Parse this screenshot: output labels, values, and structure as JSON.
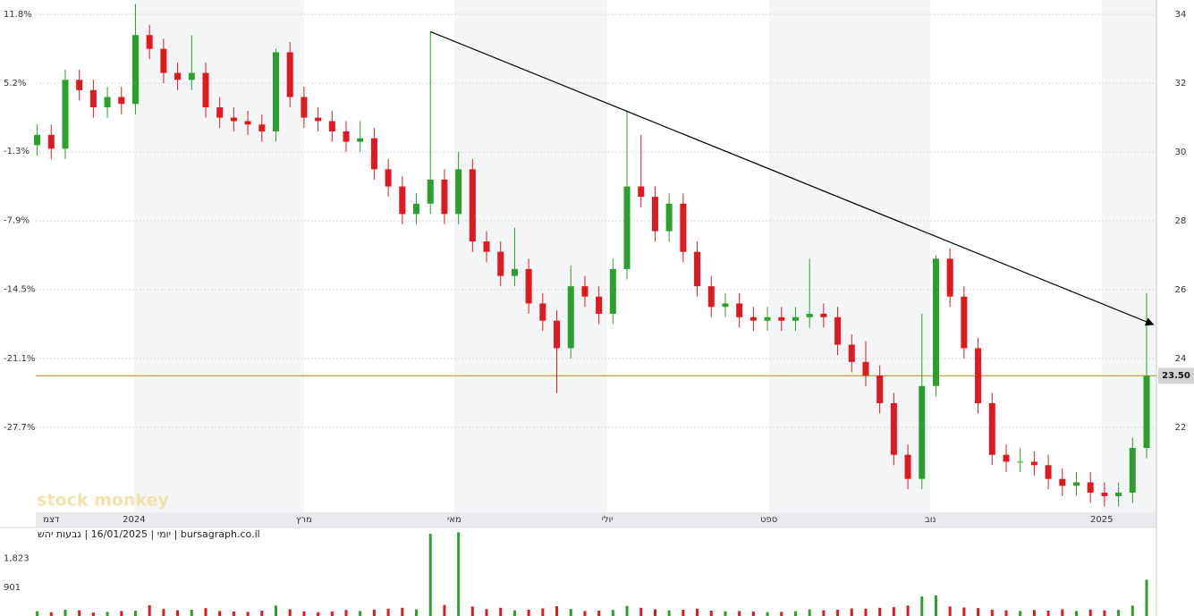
{
  "chart_data": {
    "type": "candlestick",
    "subtitle": "יומי | 16/01/2025 | גבעות יהש | bursagraph.co.il",
    "watermark": "stock monkey",
    "xlim": [
      -0.1,
      79.7
    ],
    "xticks": [
      {
        "value": 1.0,
        "label": "דצמ"
      },
      {
        "value": 6.9,
        "label": "2024"
      },
      {
        "value": 19.0,
        "label": "מרץ"
      },
      {
        "value": 29.7,
        "label": "מאי"
      },
      {
        "value": 40.6,
        "label": "יולי"
      },
      {
        "value": 52.1,
        "label": "ספט"
      },
      {
        "value": 63.6,
        "label": "נוב"
      },
      {
        "value": 75.8,
        "label": "2025"
      }
    ],
    "ylim": [
      19.53,
      34.42
    ],
    "yticks": [
      22,
      24,
      26,
      28,
      30,
      32,
      34
    ],
    "y2lim": [
      -35.82,
      13.17
    ],
    "y2ticks": [
      {
        "value": 11.8,
        "label": "11.8%"
      },
      {
        "value": 5.2,
        "label": "5.2%"
      },
      {
        "value": -1.3,
        "label": "-1.3%"
      },
      {
        "value": -7.9,
        "label": "-7.9%"
      },
      {
        "value": -14.5,
        "label": "-14.5%"
      },
      {
        "value": -21.1,
        "label": "-21.1%"
      },
      {
        "value": -27.7,
        "label": "-27.7%"
      }
    ],
    "grid": true,
    "up_color": "#2ca02c",
    "down_color": "#e0191e",
    "open": [
      30.2,
      30.5,
      30.1,
      32.1,
      31.8,
      31.3,
      31.6,
      31.4,
      33.4,
      33.0,
      32.3,
      32.1,
      32.3,
      31.3,
      31.0,
      30.9,
      30.8,
      30.6,
      32.9,
      31.6,
      31.0,
      30.9,
      30.6,
      30.3,
      30.4,
      29.5,
      29.0,
      28.2,
      28.5,
      29.2,
      28.2,
      29.5,
      27.4,
      27.1,
      26.4,
      26.6,
      25.6,
      25.1,
      24.3,
      26.1,
      25.8,
      25.3,
      26.6,
      29.0,
      28.7,
      27.7,
      28.5,
      27.1,
      26.1,
      25.5,
      25.6,
      25.2,
      25.1,
      25.2,
      25.1,
      25.2,
      25.3,
      25.2,
      24.4,
      23.9,
      23.5,
      22.7,
      21.2,
      20.5,
      23.2,
      26.9,
      25.8,
      24.3,
      22.7,
      21.2,
      21.0,
      21.0,
      20.9,
      20.5,
      20.3,
      20.4,
      20.1,
      20.0,
      20.1,
      21.4
    ],
    "high": [
      30.8,
      30.8,
      32.4,
      32.4,
      32.1,
      31.9,
      31.9,
      34.3,
      33.7,
      33.3,
      32.6,
      33.4,
      32.6,
      31.6,
      31.3,
      31.2,
      31.1,
      33.0,
      33.2,
      31.9,
      31.3,
      31.2,
      30.9,
      30.9,
      30.7,
      29.8,
      29.3,
      28.8,
      33.5,
      29.5,
      30.0,
      29.8,
      27.7,
      27.4,
      27.8,
      26.9,
      25.9,
      25.4,
      26.7,
      26.4,
      26.1,
      26.9,
      31.2,
      30.5,
      29.0,
      28.8,
      28.8,
      27.4,
      26.4,
      25.9,
      25.9,
      25.5,
      25.5,
      25.5,
      25.5,
      26.9,
      25.6,
      25.5,
      24.7,
      24.5,
      23.8,
      23.0,
      21.5,
      25.3,
      27.0,
      27.2,
      26.1,
      24.6,
      23.0,
      21.5,
      21.4,
      21.3,
      21.2,
      20.8,
      20.7,
      20.7,
      20.4,
      20.4,
      21.7,
      25.9
    ],
    "low": [
      29.9,
      29.8,
      29.8,
      31.5,
      31.0,
      31.0,
      31.1,
      31.1,
      32.7,
      32.0,
      31.8,
      31.8,
      31.0,
      30.7,
      30.6,
      30.5,
      30.3,
      30.3,
      31.3,
      30.7,
      30.6,
      30.3,
      30.0,
      30.0,
      29.2,
      28.7,
      27.9,
      27.9,
      28.2,
      27.9,
      27.9,
      27.1,
      26.8,
      26.1,
      26.1,
      25.3,
      24.8,
      23.0,
      24.0,
      25.5,
      25.0,
      25.0,
      26.3,
      28.4,
      27.4,
      27.4,
      26.8,
      25.8,
      25.2,
      25.2,
      24.9,
      24.8,
      24.8,
      24.8,
      24.8,
      24.9,
      24.9,
      24.1,
      23.6,
      23.2,
      22.4,
      20.9,
      20.2,
      20.2,
      22.9,
      25.5,
      24.0,
      22.4,
      20.9,
      20.7,
      20.7,
      20.6,
      20.2,
      20.0,
      20.0,
      19.8,
      19.7,
      19.7,
      19.8,
      21.1
    ],
    "close": [
      30.5,
      30.1,
      32.1,
      31.8,
      31.3,
      31.6,
      31.4,
      33.4,
      33.0,
      32.3,
      32.1,
      32.3,
      31.3,
      31.0,
      30.9,
      30.8,
      30.6,
      32.9,
      31.6,
      31.0,
      30.9,
      30.6,
      30.3,
      30.4,
      29.5,
      29.0,
      28.2,
      28.5,
      29.2,
      28.2,
      29.5,
      27.4,
      27.1,
      26.4,
      26.6,
      25.6,
      25.1,
      24.3,
      26.1,
      25.8,
      25.3,
      26.6,
      29.0,
      28.7,
      27.7,
      28.5,
      27.1,
      26.1,
      25.5,
      25.6,
      25.2,
      25.1,
      25.2,
      25.1,
      25.2,
      25.3,
      25.2,
      24.4,
      23.9,
      23.5,
      22.7,
      21.2,
      20.5,
      23.2,
      26.9,
      25.8,
      24.3,
      22.7,
      21.2,
      21.0,
      21.0,
      20.9,
      20.5,
      20.3,
      20.4,
      20.1,
      20.0,
      20.1,
      21.4,
      23.5
    ],
    "last_price": {
      "value": 23.5,
      "label": "23.50",
      "color": "#b8860b"
    },
    "trendline": {
      "x": [
        28,
        79.4
      ],
      "y": [
        33.5,
        25.0
      ],
      "color": "#000000"
    },
    "volume": {
      "values": [
        150,
        120,
        200,
        180,
        110,
        130,
        160,
        170,
        340,
        220,
        180,
        200,
        250,
        160,
        140,
        130,
        170,
        330,
        210,
        150,
        120,
        140,
        190,
        160,
        200,
        230,
        260,
        210,
        2600,
        350,
        2650,
        300,
        220,
        260,
        180,
        200,
        240,
        310,
        220,
        160,
        170,
        190,
        320,
        260,
        210,
        180,
        200,
        230,
        170,
        150,
        160,
        140,
        120,
        130,
        150,
        210,
        180,
        200,
        240,
        230,
        260,
        280,
        330,
        620,
        650,
        300,
        270,
        250,
        200,
        180,
        160,
        190,
        170,
        210,
        160,
        200,
        180,
        190,
        330,
        1150
      ],
      "ylim": [
        0,
        2745
      ],
      "yticks": [
        {
          "value": 1823,
          "label": "1,823"
        },
        901
      ]
    }
  }
}
